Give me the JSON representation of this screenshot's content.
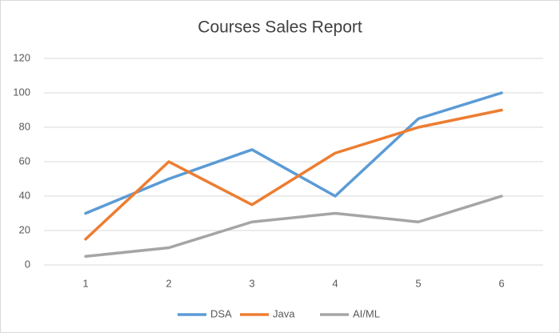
{
  "chart_data": {
    "type": "line",
    "title": "Courses Sales Report",
    "categories": [
      "1",
      "2",
      "3",
      "4",
      "5",
      "6"
    ],
    "series": [
      {
        "name": "DSA",
        "color": "#5b9bd5",
        "values": [
          30,
          50,
          67,
          40,
          85,
          100
        ]
      },
      {
        "name": "Java",
        "color": "#ed7d31",
        "values": [
          15,
          60,
          35,
          65,
          80,
          90
        ]
      },
      {
        "name": "AI/ML",
        "color": "#a5a5a5",
        "values": [
          5,
          10,
          25,
          30,
          25,
          40
        ]
      }
    ],
    "ylim": [
      0,
      120
    ],
    "yticks": [
      0,
      20,
      40,
      60,
      80,
      100,
      120
    ],
    "grid": true,
    "legend": "bottom"
  }
}
